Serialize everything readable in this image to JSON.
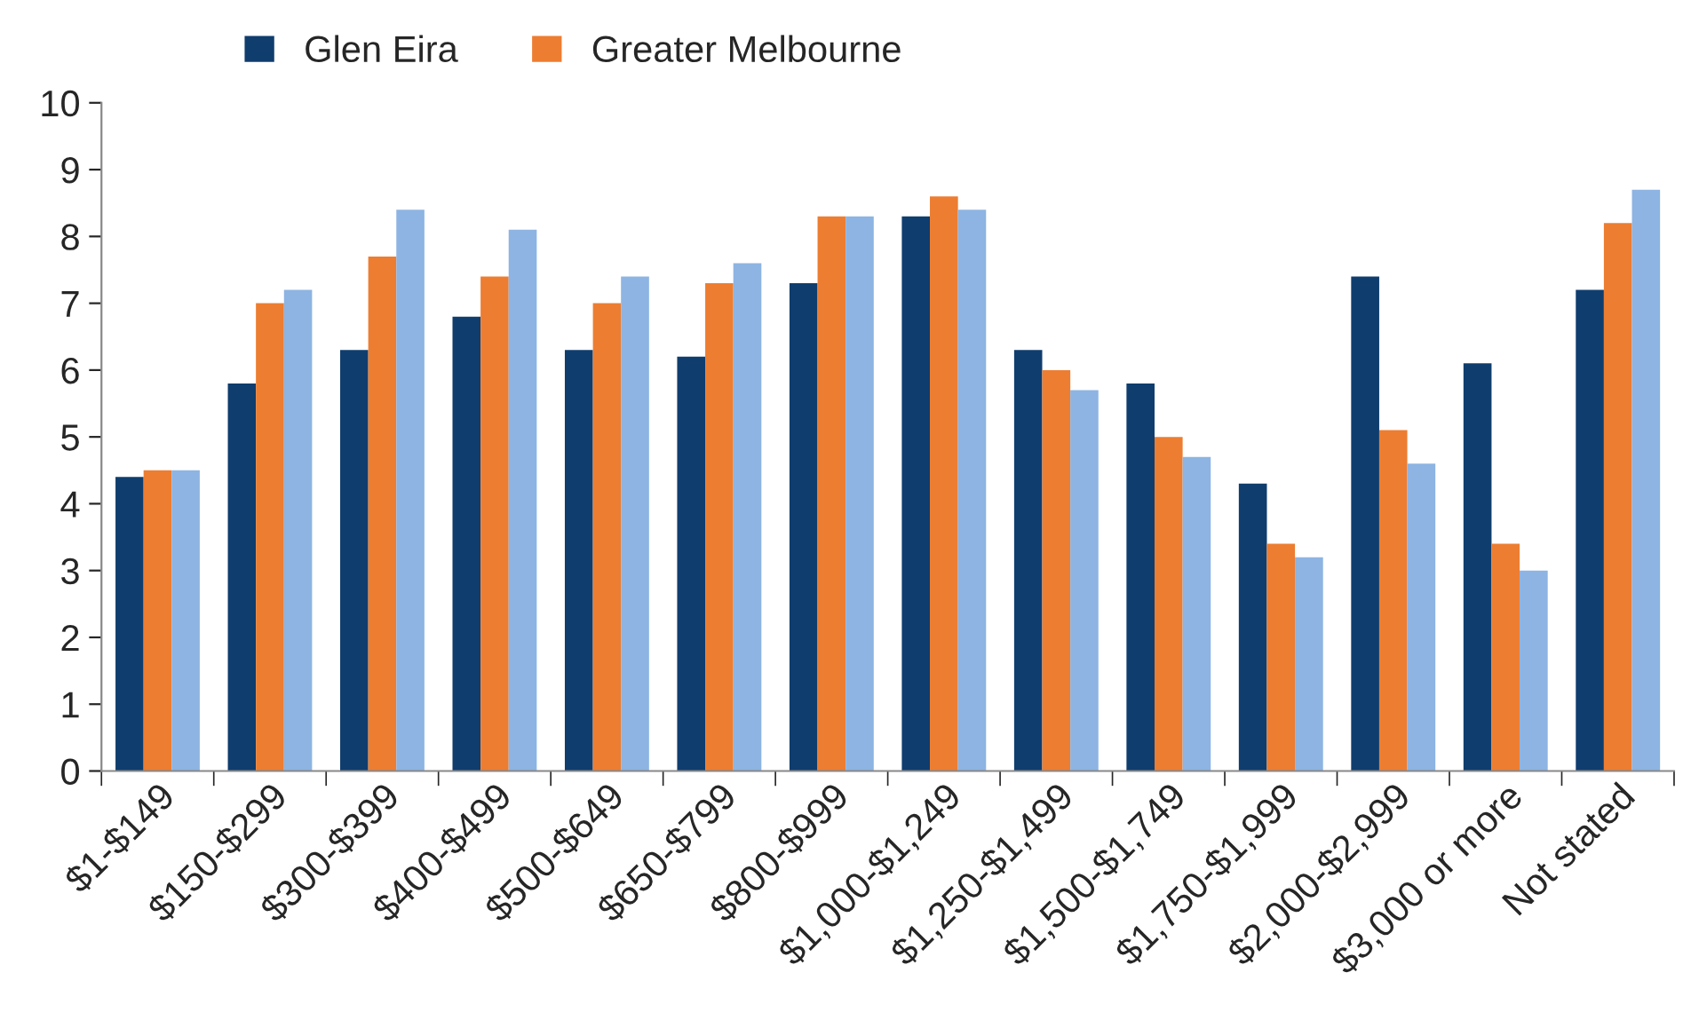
{
  "chart_data": {
    "type": "bar",
    "categories": [
      "$1-$149",
      "$150-$299",
      "$300-$399",
      "$400-$499",
      "$500-$649",
      "$650-$799",
      "$800-$999",
      "$1,000-$1,249",
      "$1,250-$1,499",
      "$1,500-$1,749",
      "$1,750-$1,999",
      "$2,000-$2,999",
      "$3,000 or more",
      "Not stated"
    ],
    "series": [
      {
        "name": "Glen Eira",
        "color": "#0f3d6e",
        "values": [
          4.4,
          5.8,
          6.3,
          6.8,
          6.3,
          6.2,
          7.3,
          8.3,
          6.3,
          5.8,
          4.3,
          7.4,
          6.1,
          7.2
        ]
      },
      {
        "name": "Greater Melbourne",
        "color": "#ed7d31",
        "values": [
          4.5,
          7.0,
          7.7,
          7.4,
          7.0,
          7.3,
          8.3,
          8.6,
          6.0,
          5.0,
          3.4,
          5.1,
          3.4,
          8.2
        ]
      },
      {
        "color": "#8db4e2",
        "values": [
          4.5,
          7.2,
          8.4,
          8.1,
          7.4,
          7.6,
          8.3,
          8.4,
          5.7,
          4.7,
          3.2,
          4.6,
          3.0,
          8.7
        ]
      }
    ],
    "ylim": [
      0,
      10
    ],
    "yticks": [
      0,
      1,
      2,
      3,
      4,
      5,
      6,
      7,
      8,
      9,
      10
    ],
    "grid": false,
    "legend": "top"
  }
}
